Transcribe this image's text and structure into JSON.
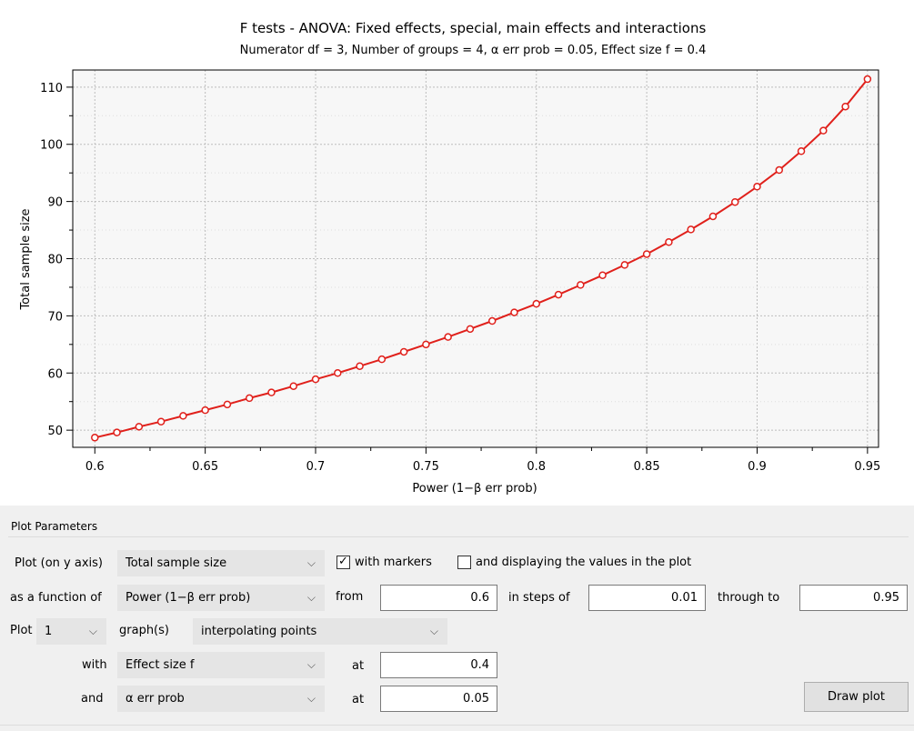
{
  "chart_data": {
    "type": "line",
    "title": "F tests - ANOVA: Fixed effects, special, main effects and interactions",
    "subtitle": "Numerator df = 3, Number of groups = 4, α err prob = 0.05, Effect size f = 0.4",
    "xlabel": "Power (1−β err prob)",
    "ylabel": "Total sample size",
    "xlim": [
      0.59,
      0.955
    ],
    "ylim": [
      47,
      113
    ],
    "xticks": [
      0.6,
      0.65,
      0.7,
      0.75,
      0.8,
      0.85,
      0.9,
      0.95
    ],
    "xtick_labels": [
      "0.6",
      "0.65",
      "0.7",
      "0.75",
      "0.8",
      "0.85",
      "0.9",
      "0.95"
    ],
    "yticks": [
      50,
      60,
      70,
      80,
      90,
      100,
      110
    ],
    "ytick_labels": [
      "50",
      "60",
      "70",
      "80",
      "90",
      "100",
      "110"
    ],
    "grid": true,
    "markers": true,
    "series": [
      {
        "color": "#e0201b",
        "x": [
          0.6,
          0.61,
          0.62,
          0.63,
          0.64,
          0.65,
          0.66,
          0.67,
          0.68,
          0.69,
          0.7,
          0.71,
          0.72,
          0.73,
          0.74,
          0.75,
          0.76,
          0.77,
          0.78,
          0.79,
          0.8,
          0.81,
          0.82,
          0.83,
          0.84,
          0.85,
          0.86,
          0.87,
          0.88,
          0.89,
          0.9,
          0.91,
          0.92,
          0.93,
          0.94,
          0.95
        ],
        "y": [
          48.7,
          49.6,
          50.6,
          51.5,
          52.5,
          53.5,
          54.5,
          55.6,
          56.6,
          57.7,
          58.9,
          60.0,
          61.2,
          62.4,
          63.7,
          65.0,
          66.3,
          67.7,
          69.1,
          70.6,
          72.1,
          73.7,
          75.4,
          77.1,
          78.9,
          80.8,
          82.9,
          85.1,
          87.4,
          89.9,
          92.6,
          95.5,
          98.8,
          102.4,
          106.6,
          111.4
        ]
      }
    ]
  },
  "params": {
    "group_title": "Plot Parameters",
    "plot_on_y_label": "Plot (on y axis)",
    "y_axis_select": "Total sample size",
    "with_markers_checked": "✓",
    "with_markers_label": "with markers",
    "display_values_checked": "",
    "display_values_label": "and displaying the values in the plot",
    "function_of_label": "as a function of",
    "x_axis_select": "Power (1−β err prob)",
    "from_label": "from",
    "from_value": "0.6",
    "steps_label": "in steps of",
    "steps_value": "0.01",
    "through_label": "through to",
    "through_value": "0.95",
    "plot_label": "Plot",
    "graph_count_select": "1",
    "graphs_label": "graph(s)",
    "interp_select": "interpolating points",
    "with_label": "with",
    "param1_select": "Effect size f",
    "at1_label": "at",
    "param1_value": "0.4",
    "and_label": "and",
    "param2_select": "α err prob",
    "at2_label": "at",
    "param2_value": "0.05",
    "draw_button": "Draw plot",
    "chevron_icon": "chevron-down-icon"
  }
}
